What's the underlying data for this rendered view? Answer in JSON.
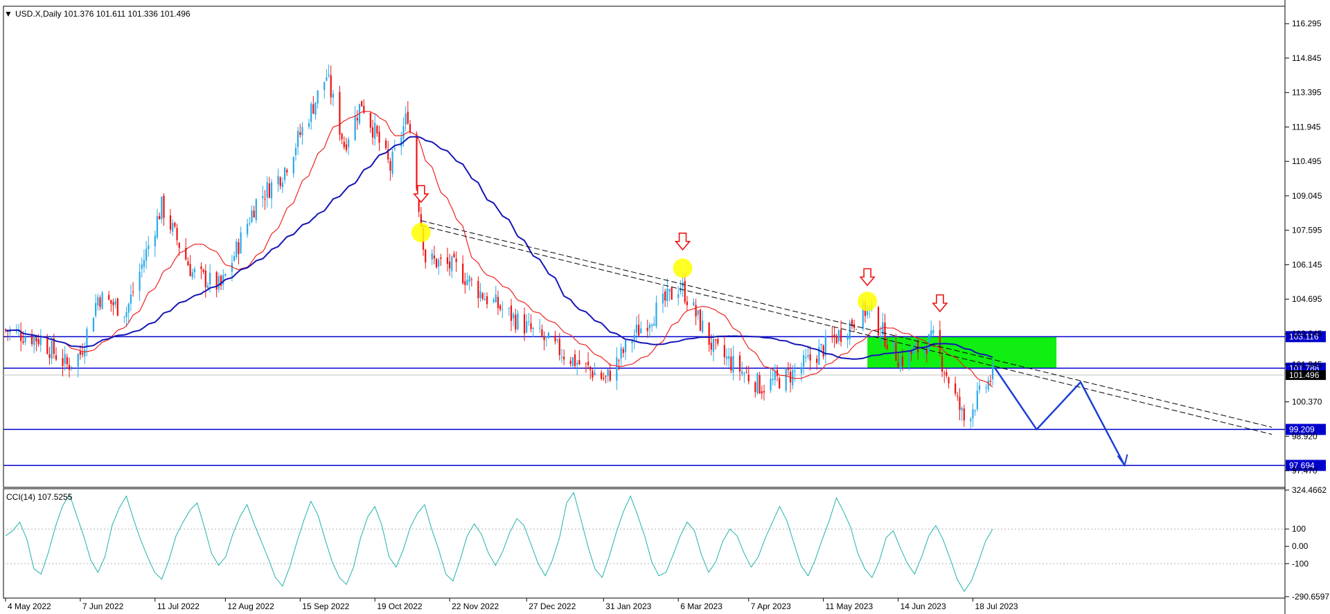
{
  "header": {
    "arrow_glyph": "▼",
    "text": "USD.X,Daily  101.376 101.611 101.336 101.496"
  },
  "indicator": {
    "text": "CCI(14) 107.5255"
  },
  "colors": {
    "bull": "#2aa9e8",
    "bear": "#ee1111",
    "ma_fast": "#ee2222",
    "ma_slow": "#1515b5",
    "level": "#0000cc",
    "zone": "#11ee11",
    "cci": "#20b2aa",
    "marker": "#ffff00",
    "arrow": "#ee1111",
    "projection": "#1a3fd6"
  },
  "chart_data": [
    {
      "type": "candlestick",
      "symbol": "USD.X",
      "timeframe": "Daily",
      "last_ohlc": {
        "open": 101.376,
        "high": 101.611,
        "low": 101.336,
        "close": 101.496
      },
      "x_tick_labels": [
        "4 May 2022",
        "7 Jun 2022",
        "11 Jul 2022",
        "12 Aug 2022",
        "15 Sep 2022",
        "19 Oct 2022",
        "22 Nov 2022",
        "27 Dec 2022",
        "31 Jan 2023",
        "6 Mar 2023",
        "7 Apr 2023",
        "11 May 2023",
        "14 Jun 2023",
        "18 Jul 2023"
      ],
      "y_tick_labels": [
        "116.295",
        "114.845",
        "113.395",
        "111.945",
        "110.495",
        "109.045",
        "107.595",
        "106.145",
        "104.695",
        "103.245",
        "101.945",
        "100.370",
        "98.920",
        "97.470"
      ],
      "ylim": [
        96.8,
        117.0
      ],
      "approx_close_path": [
        {
          "date": "2022-05-04",
          "close": 103.4
        },
        {
          "date": "2022-05-20",
          "close": 103.0
        },
        {
          "date": "2022-06-01",
          "close": 101.9
        },
        {
          "date": "2022-06-07",
          "close": 102.4
        },
        {
          "date": "2022-06-15",
          "close": 104.8
        },
        {
          "date": "2022-06-28",
          "close": 104.2
        },
        {
          "date": "2022-07-06",
          "close": 106.4
        },
        {
          "date": "2022-07-14",
          "close": 108.6
        },
        {
          "date": "2022-07-28",
          "close": 105.8
        },
        {
          "date": "2022-08-10",
          "close": 105.2
        },
        {
          "date": "2022-08-26",
          "close": 108.8
        },
        {
          "date": "2022-09-07",
          "close": 110.0
        },
        {
          "date": "2022-09-27",
          "close": 114.1
        },
        {
          "date": "2022-10-05",
          "close": 111.2
        },
        {
          "date": "2022-10-13",
          "close": 113.0
        },
        {
          "date": "2022-10-26",
          "close": 110.2
        },
        {
          "date": "2022-11-03",
          "close": 112.5
        },
        {
          "date": "2022-11-11",
          "close": 106.4
        },
        {
          "date": "2022-11-25",
          "close": 106.0
        },
        {
          "date": "2022-12-08",
          "close": 104.8
        },
        {
          "date": "2022-12-30",
          "close": 103.3
        },
        {
          "date": "2023-01-16",
          "close": 102.2
        },
        {
          "date": "2023-02-01",
          "close": 101.3
        },
        {
          "date": "2023-02-14",
          "close": 103.2
        },
        {
          "date": "2023-03-07",
          "close": 105.3
        },
        {
          "date": "2023-03-22",
          "close": 102.6
        },
        {
          "date": "2023-04-13",
          "close": 101.0
        },
        {
          "date": "2023-04-28",
          "close": 101.6
        },
        {
          "date": "2023-05-12",
          "close": 102.7
        },
        {
          "date": "2023-05-31",
          "close": 104.3
        },
        {
          "date": "2023-06-15",
          "close": 102.1
        },
        {
          "date": "2023-06-30",
          "close": 103.0
        },
        {
          "date": "2023-07-14",
          "close": 99.6
        },
        {
          "date": "2023-07-27",
          "close": 101.5
        }
      ],
      "moving_averages": [
        {
          "name": "MA fast",
          "color": "red"
        },
        {
          "name": "MA slow",
          "color": "navy"
        }
      ],
      "horizontal_levels": [
        {
          "value": 103.116,
          "label": "103.116"
        },
        {
          "value": 101.788,
          "label": "101.788"
        },
        {
          "value": 99.209,
          "label": "99.209"
        },
        {
          "value": 97.694,
          "label": "97.694"
        }
      ],
      "current_price_label": "101.496",
      "resistance_zone": {
        "from": 101.788,
        "to": 103.116,
        "start": "2023-05-31",
        "end": "2023-08-25"
      },
      "trendlines": [
        {
          "style": "dashed",
          "from": {
            "date": "2022-11-09",
            "value": 108.0
          },
          "to": {
            "date": "2023-12-01",
            "value": 99.3
          }
        },
        {
          "style": "dashed",
          "from": {
            "date": "2022-11-09",
            "value": 107.8
          },
          "to": {
            "date": "2023-12-01",
            "value": 99.0
          }
        }
      ],
      "highlight_markers": [
        {
          "date": "2022-11-09",
          "value": 107.5
        },
        {
          "date": "2023-03-08",
          "value": 106.0
        },
        {
          "date": "2023-05-31",
          "value": 104.6
        }
      ],
      "down_arrows": [
        "2022-11-09",
        "2023-03-08",
        "2023-05-31",
        "2023-07-03"
      ],
      "projection_path": [
        {
          "date": "2023-07-28",
          "value": 101.8
        },
        {
          "date": "2023-08-16",
          "value": 99.209
        },
        {
          "date": "2023-09-05",
          "value": 101.2
        },
        {
          "date": "2023-09-25",
          "value": 97.694
        }
      ]
    },
    {
      "type": "line",
      "name": "CCI(14)",
      "last_value": 107.5255,
      "y_tick_labels": [
        "324.4662",
        "100",
        "0.00",
        "-100",
        "-290.6597"
      ],
      "ylim": [
        -290.6597,
        324.4662
      ],
      "reference_levels": [
        100,
        -100
      ],
      "values": [
        60,
        90,
        140,
        40,
        -130,
        -160,
        -40,
        110,
        230,
        300,
        180,
        60,
        -80,
        -150,
        -60,
        120,
        220,
        290,
        160,
        40,
        -60,
        -150,
        -190,
        -80,
        60,
        140,
        210,
        250,
        110,
        -40,
        -110,
        -60,
        70,
        170,
        240,
        130,
        30,
        -70,
        -180,
        -230,
        -120,
        20,
        150,
        260,
        180,
        40,
        -90,
        -180,
        -220,
        -120,
        50,
        170,
        230,
        120,
        -60,
        -120,
        -20,
        110,
        190,
        240,
        100,
        -20,
        -160,
        -200,
        -80,
        60,
        130,
        70,
        -40,
        -110,
        -30,
        80,
        160,
        120,
        10,
        -100,
        -170,
        -80,
        50,
        250,
        310,
        160,
        0,
        -130,
        -180,
        -60,
        80,
        200,
        290,
        180,
        60,
        -90,
        -170,
        -150,
        -50,
        60,
        140,
        90,
        -50,
        -150,
        -90,
        30,
        100,
        60,
        -40,
        -120,
        -60,
        50,
        140,
        230,
        150,
        20,
        -110,
        -170,
        -80,
        40,
        150,
        280,
        200,
        110,
        -40,
        -130,
        -180,
        -90,
        50,
        90,
        -10,
        -100,
        -160,
        -60,
        60,
        120,
        40,
        -70,
        -190,
        -260,
        -200,
        -90,
        30,
        100
      ]
    }
  ]
}
